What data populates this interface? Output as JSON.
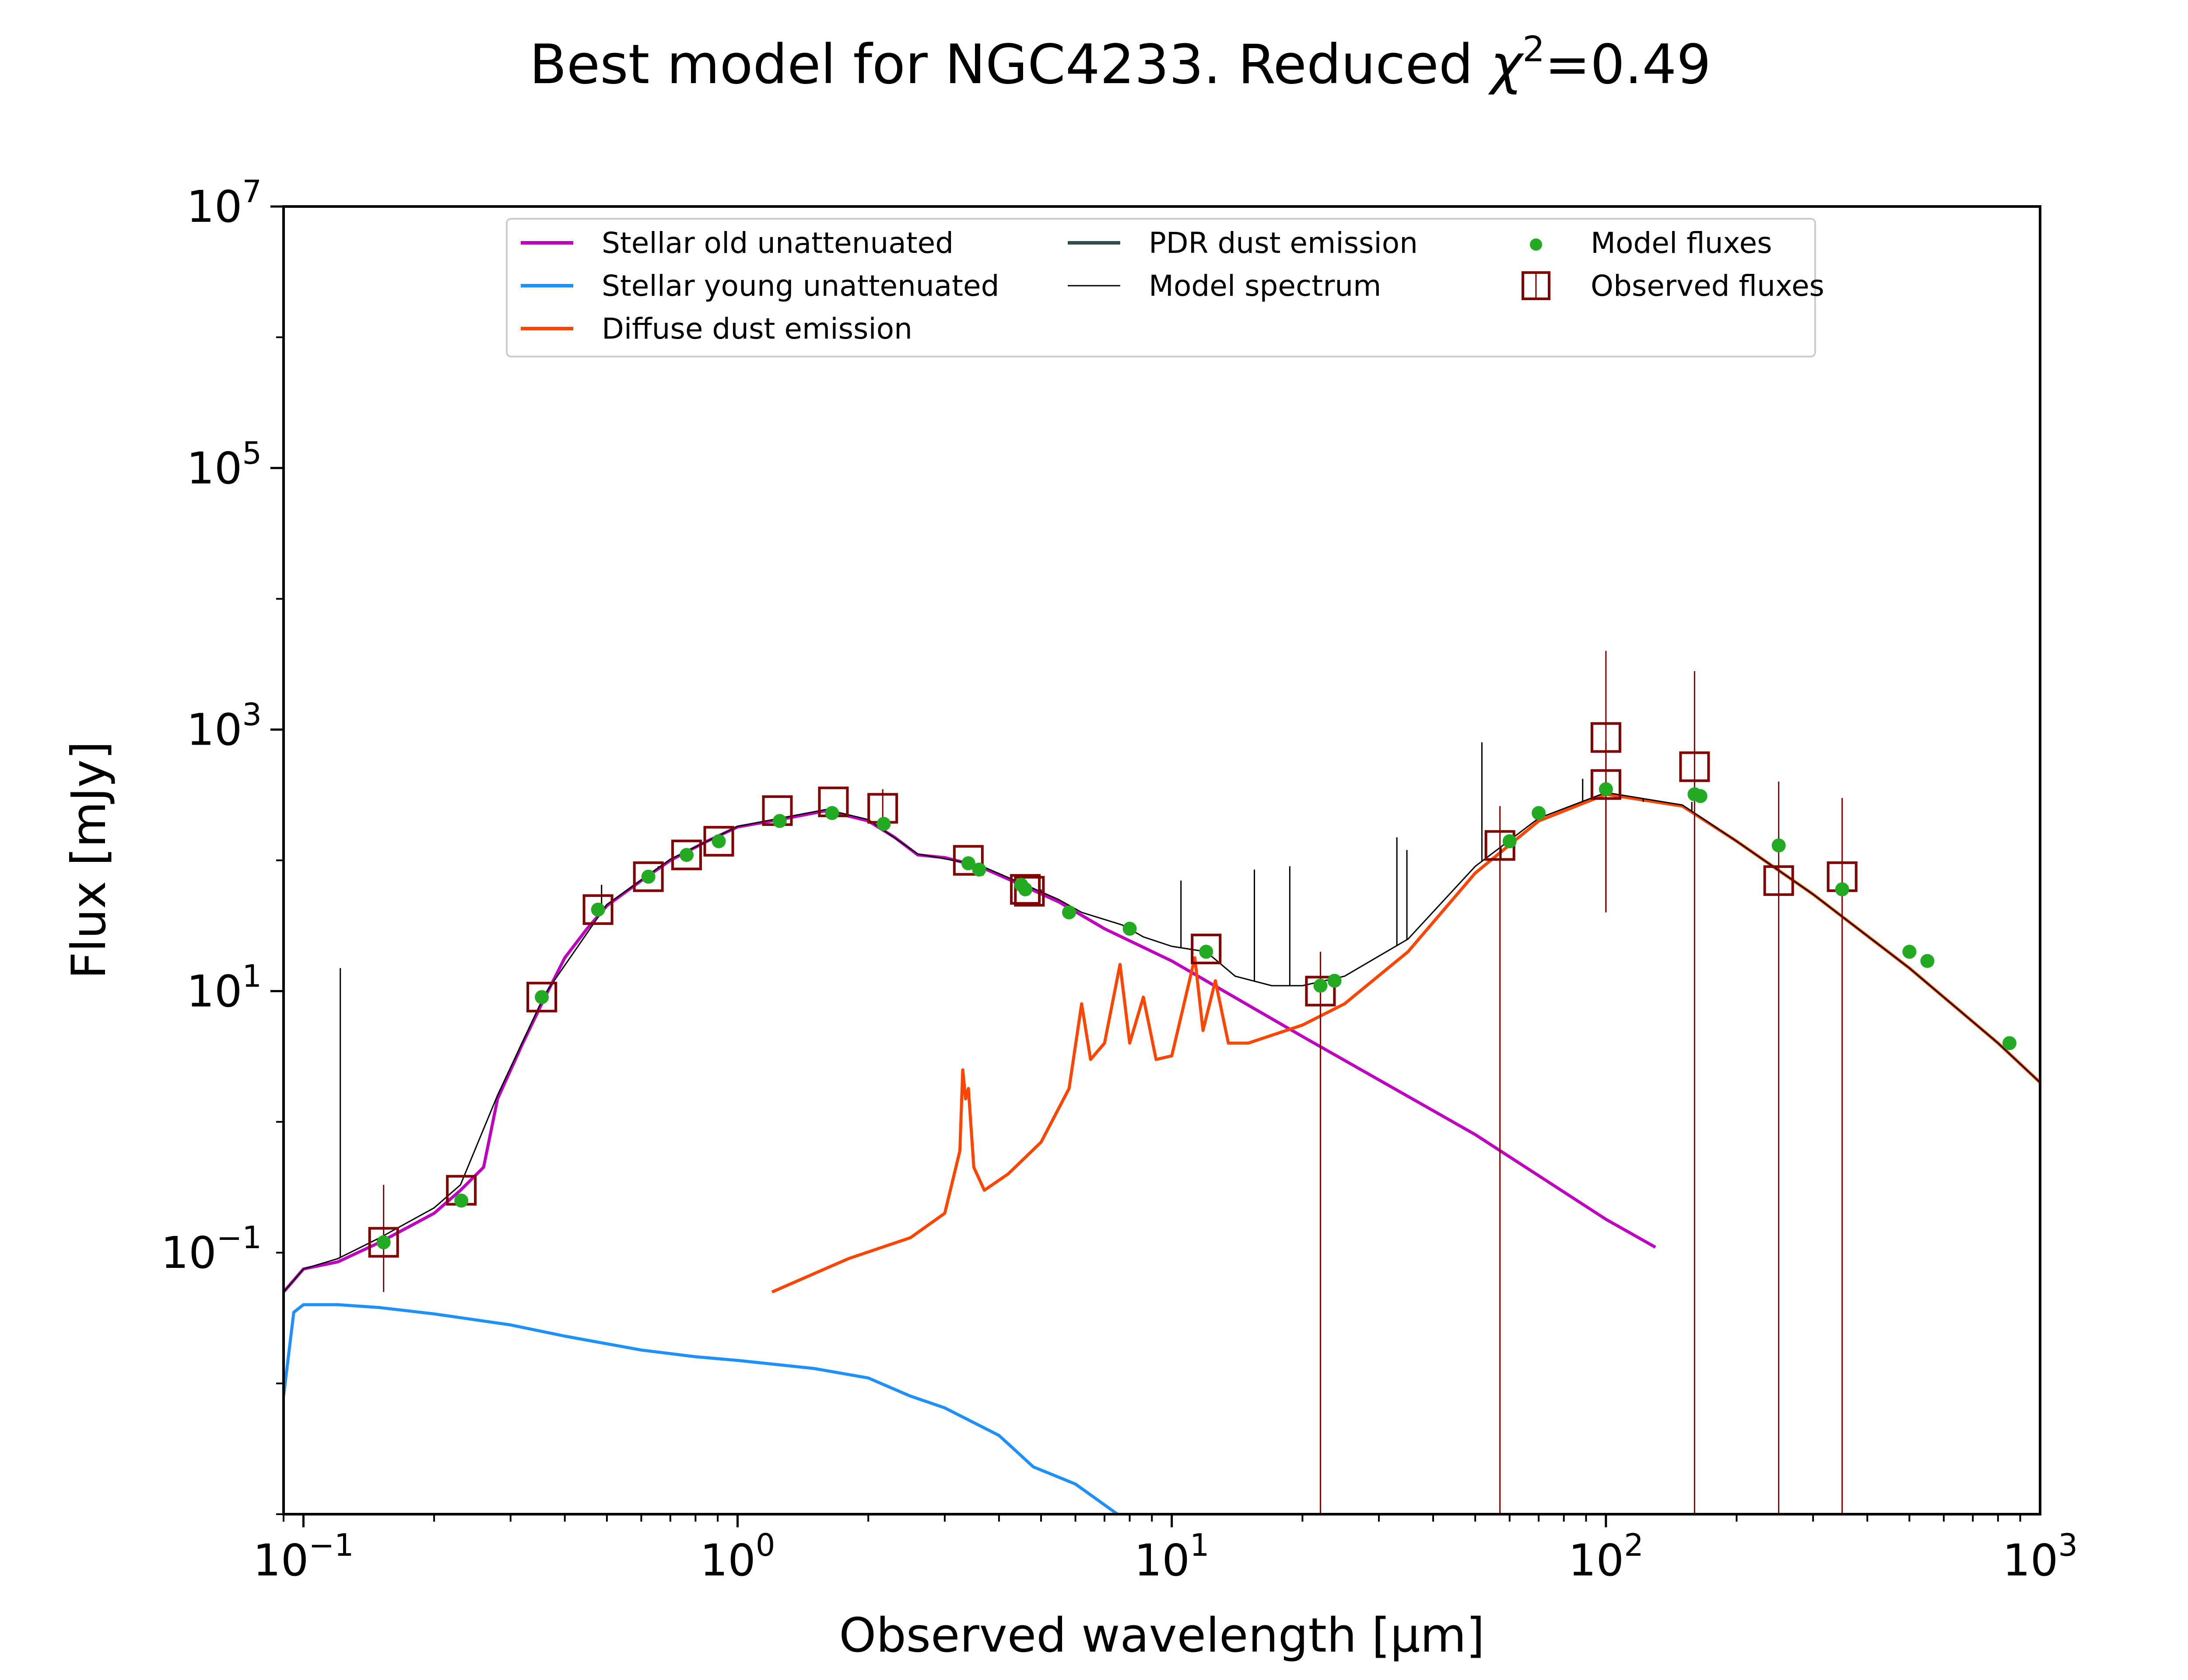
{
  "chart_data": {
    "type": "line",
    "title": {
      "prefix": "Best model for NGC4233. Reduced ",
      "chi": "χ",
      "chi_exp": "2",
      "suffix": "=0.49"
    },
    "xlabel": "Observed wavelength [μm]",
    "ylabel": "Flux [mJy]",
    "x_scale": "log",
    "y_scale": "log",
    "xlim": [
      0.09,
      1000
    ],
    "ylim": [
      0.001,
      10000000
    ],
    "x_ticks": [
      {
        "base": "10",
        "exp": "−1",
        "value": 0.1
      },
      {
        "base": "10",
        "exp": "0",
        "value": 1
      },
      {
        "base": "10",
        "exp": "1",
        "value": 10
      },
      {
        "base": "10",
        "exp": "2",
        "value": 100
      },
      {
        "base": "10",
        "exp": "3",
        "value": 1000
      }
    ],
    "y_ticks": [
      {
        "base": "10",
        "exp": "−1",
        "value": 0.1
      },
      {
        "base": "10",
        "exp": "1",
        "value": 10
      },
      {
        "base": "10",
        "exp": "3",
        "value": 1000
      },
      {
        "base": "10",
        "exp": "5",
        "value": 100000
      },
      {
        "base": "10",
        "exp": "7",
        "value": 10000000
      }
    ],
    "legend": {
      "position": "top-center",
      "entries": [
        {
          "label": "Stellar old unattenuated",
          "color": "#c000c0",
          "marker": "line"
        },
        {
          "label": "Stellar young unattenuated",
          "color": "#1e90ff",
          "marker": "line"
        },
        {
          "label": "Diffuse dust emission",
          "color": "#ff4500",
          "marker": "line"
        },
        {
          "label": "PDR dust emission",
          "color": "#2f4f4f",
          "marker": "line"
        },
        {
          "label": "Model spectrum",
          "color": "#000000",
          "marker": "thinline"
        },
        {
          "label": "Model fluxes",
          "color": "#22aa22",
          "marker": "dot"
        },
        {
          "label": "Observed fluxes",
          "color": "#800000",
          "marker": "square"
        }
      ]
    },
    "series": [
      {
        "name": "Stellar old unattenuated",
        "color": "#c000c0",
        "points": [
          [
            0.09,
            0.05
          ],
          [
            0.1,
            0.075
          ],
          [
            0.12,
            0.085
          ],
          [
            0.15,
            0.12
          ],
          [
            0.2,
            0.2
          ],
          [
            0.23,
            0.3
          ],
          [
            0.26,
            0.45
          ],
          [
            0.28,
            1.5
          ],
          [
            0.32,
            4
          ],
          [
            0.36,
            9
          ],
          [
            0.4,
            18
          ],
          [
            0.45,
            30
          ],
          [
            0.5,
            45
          ],
          [
            0.6,
            70
          ],
          [
            0.7,
            100
          ],
          [
            0.85,
            140
          ],
          [
            1.0,
            180
          ],
          [
            1.3,
            210
          ],
          [
            1.6,
            240
          ],
          [
            2.0,
            200
          ],
          [
            2.3,
            150
          ],
          [
            2.6,
            110
          ],
          [
            3.0,
            105
          ],
          [
            3.6,
            90
          ],
          [
            4.5,
            65
          ],
          [
            5.5,
            48
          ],
          [
            7,
            30
          ],
          [
            10,
            17
          ],
          [
            20,
            4.5
          ],
          [
            50,
            0.8
          ],
          [
            100,
            0.18
          ],
          [
            130,
            0.11
          ]
        ]
      },
      {
        "name": "Stellar young unattenuated",
        "color": "#1e90ff",
        "points": [
          [
            0.09,
            0.008
          ],
          [
            0.095,
            0.035
          ],
          [
            0.1,
            0.04
          ],
          [
            0.12,
            0.04
          ],
          [
            0.15,
            0.038
          ],
          [
            0.2,
            0.034
          ],
          [
            0.3,
            0.028
          ],
          [
            0.4,
            0.023
          ],
          [
            0.6,
            0.018
          ],
          [
            0.8,
            0.016
          ],
          [
            1.0,
            0.015
          ],
          [
            1.5,
            0.013
          ],
          [
            2.0,
            0.011
          ],
          [
            2.5,
            0.008
          ],
          [
            3.0,
            0.0065
          ],
          [
            4.0,
            0.004
          ],
          [
            4.8,
            0.0023
          ],
          [
            6.0,
            0.0017
          ],
          [
            7.5,
            0.001
          ]
        ]
      },
      {
        "name": "Diffuse dust emission",
        "color": "#ff4500",
        "points": [
          [
            1.2,
            0.05
          ],
          [
            1.8,
            0.09
          ],
          [
            2.5,
            0.13
          ],
          [
            3.0,
            0.2
          ],
          [
            3.25,
            0.6
          ],
          [
            3.3,
            2.5
          ],
          [
            3.35,
            1.5
          ],
          [
            3.4,
            1.8
          ],
          [
            3.5,
            0.45
          ],
          [
            3.7,
            0.3
          ],
          [
            4.2,
            0.4
          ],
          [
            5.0,
            0.7
          ],
          [
            5.8,
            1.8
          ],
          [
            6.2,
            8
          ],
          [
            6.5,
            3
          ],
          [
            7.0,
            4
          ],
          [
            7.6,
            16
          ],
          [
            8.0,
            4
          ],
          [
            8.6,
            9
          ],
          [
            9.2,
            3
          ],
          [
            10.0,
            3.2
          ],
          [
            11.3,
            18
          ],
          [
            11.8,
            5
          ],
          [
            12.6,
            12
          ],
          [
            13.5,
            4
          ],
          [
            15,
            4
          ],
          [
            20,
            5.5
          ],
          [
            25,
            8
          ],
          [
            35,
            20
          ],
          [
            50,
            80
          ],
          [
            70,
            200
          ],
          [
            100,
            320
          ],
          [
            150,
            260
          ],
          [
            200,
            140
          ],
          [
            300,
            55
          ],
          [
            500,
            15
          ],
          [
            800,
            4
          ],
          [
            1000,
            2
          ]
        ]
      },
      {
        "name": "Model spectrum",
        "color": "#000000",
        "points": [
          [
            0.09,
            0.05
          ],
          [
            0.1,
            0.075
          ],
          [
            0.12,
            0.09
          ],
          [
            0.15,
            0.13
          ],
          [
            0.2,
            0.22
          ],
          [
            0.23,
            0.33
          ],
          [
            0.28,
            1.6
          ],
          [
            0.36,
            9.5
          ],
          [
            0.5,
            46
          ],
          [
            0.7,
            102
          ],
          [
            1.0,
            182
          ],
          [
            1.3,
            215
          ],
          [
            1.6,
            245
          ],
          [
            2.0,
            205
          ],
          [
            2.6,
            112
          ],
          [
            3.6,
            92
          ],
          [
            4.5,
            67
          ],
          [
            5.5,
            50
          ],
          [
            6.2,
            40
          ],
          [
            7.7,
            32
          ],
          [
            8.6,
            26
          ],
          [
            10,
            22
          ],
          [
            12,
            20
          ],
          [
            14,
            13
          ],
          [
            17,
            11
          ],
          [
            20,
            11
          ],
          [
            25,
            13
          ],
          [
            35,
            25
          ],
          [
            50,
            90
          ],
          [
            70,
            210
          ],
          [
            100,
            330
          ],
          [
            150,
            265
          ],
          [
            200,
            140
          ],
          [
            300,
            55
          ],
          [
            500,
            15
          ],
          [
            800,
            4
          ],
          [
            1000,
            2
          ]
        ]
      }
    ],
    "spikes": [
      [
        0.1216,
        15
      ],
      [
        0.121,
        0.09
      ],
      [
        0.4861,
        65
      ],
      [
        0.6563,
        90
      ],
      [
        5.0,
        60
      ],
      [
        10.5,
        70
      ],
      [
        15.5,
        85
      ],
      [
        18.7,
        90
      ],
      [
        33,
        150
      ],
      [
        34.8,
        120
      ],
      [
        51.8,
        800
      ],
      [
        57.3,
        100
      ],
      [
        88.4,
        420
      ],
      [
        121.9,
        280
      ],
      [
        157.7,
        280
      ]
    ],
    "model_fluxes": [
      [
        0.153,
        0.12
      ],
      [
        0.231,
        0.25
      ],
      [
        0.354,
        9
      ],
      [
        0.477,
        42
      ],
      [
        0.623,
        75
      ],
      [
        0.763,
        110
      ],
      [
        0.905,
        140
      ],
      [
        1.25,
        200
      ],
      [
        1.65,
        230
      ],
      [
        2.17,
        190
      ],
      [
        3.4,
        95
      ],
      [
        3.6,
        85
      ],
      [
        4.5,
        65
      ],
      [
        4.6,
        60
      ],
      [
        5.8,
        40
      ],
      [
        8.0,
        30
      ],
      [
        12,
        20
      ],
      [
        22,
        11
      ],
      [
        23.7,
        12
      ],
      [
        60,
        140
      ],
      [
        70,
        230
      ],
      [
        100,
        350
      ],
      [
        160,
        320
      ],
      [
        165,
        310
      ],
      [
        250,
        130
      ],
      [
        350,
        60
      ],
      [
        500,
        20
      ],
      [
        550,
        17
      ],
      [
        850,
        4
      ]
    ],
    "observed_fluxes": [
      {
        "x": 0.153,
        "y": 0.12,
        "err": [
          0.05,
          0.33
        ]
      },
      {
        "x": 0.231,
        "y": 0.3
      },
      {
        "x": 0.354,
        "y": 9
      },
      {
        "x": 0.477,
        "y": 42
      },
      {
        "x": 0.623,
        "y": 75
      },
      {
        "x": 0.763,
        "y": 110
      },
      {
        "x": 0.905,
        "y": 140
      },
      {
        "x": 1.235,
        "y": 240
      },
      {
        "x": 1.662,
        "y": 280
      },
      {
        "x": 2.159,
        "y": 250,
        "err": [
          170,
          350
        ]
      },
      {
        "x": 3.4,
        "y": 100
      },
      {
        "x": 4.6,
        "y": 60
      },
      {
        "x": 4.7,
        "y": 58
      },
      {
        "x": 12,
        "y": 21
      },
      {
        "x": 22,
        "y": 10,
        "err": [
          0.001,
          20
        ]
      },
      {
        "x": 57,
        "y": 130,
        "err": [
          0.001,
          260
        ]
      },
      {
        "x": 100,
        "y": 870,
        "err": [
          40,
          4000
        ]
      },
      {
        "x": 100,
        "y": 380,
        "err": [
          40,
          800
        ]
      },
      {
        "x": 160,
        "y": 520,
        "err": [
          0.001,
          2800
        ]
      },
      {
        "x": 250,
        "y": 70,
        "err": [
          0.001,
          400
        ]
      },
      {
        "x": 350,
        "y": 75,
        "err": [
          0.001,
          300
        ]
      }
    ]
  }
}
